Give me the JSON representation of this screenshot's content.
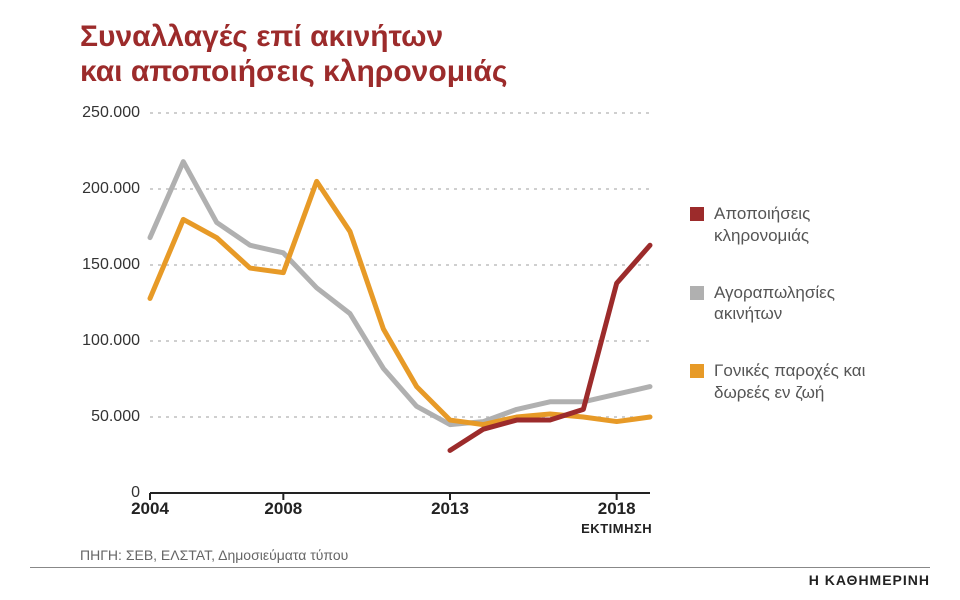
{
  "title_color": "#9c2b2b",
  "title_line1": "Συναλλαγές επί ακινήτων",
  "title_line2": "και αποποιήσεις κληρονομιάς",
  "chart": {
    "type": "line",
    "background_color": "#ffffff",
    "grid_color": "#bfbfbf",
    "axis_color": "#222222",
    "ylim_min": 0,
    "ylim_max": 250000,
    "ytick_labels": [
      "0",
      "50.000",
      "100.000",
      "150.000",
      "200.000",
      "250.000"
    ],
    "ytick_values": [
      0,
      50000,
      100000,
      150000,
      200000,
      250000
    ],
    "x_years": [
      2004,
      2005,
      2006,
      2007,
      2008,
      2009,
      2010,
      2011,
      2012,
      2013,
      2014,
      2015,
      2016,
      2017,
      2018,
      2019
    ],
    "x_tick_years": [
      2004,
      2008,
      2013,
      2018
    ],
    "x_tick_labels": [
      "2004",
      "2008",
      "2013",
      "2018"
    ],
    "x_estimate_year": 2018,
    "x_estimate_text": "ΕΚΤΙΜΗΣΗ",
    "line_width": 5,
    "series": [
      {
        "key": "apopoiiseis",
        "label": "Αποποιήσεις κληρονομιάς",
        "color": "#9c2b2b",
        "start_year": 2013,
        "values": [
          28000,
          42000,
          48000,
          48000,
          55000,
          138000,
          163000
        ]
      },
      {
        "key": "agorapolisies",
        "label": "Αγοραπωλησίες ακινήτων",
        "color": "#b0b0b0",
        "start_year": 2004,
        "values": [
          168000,
          218000,
          178000,
          163000,
          158000,
          135000,
          118000,
          82000,
          57000,
          45000,
          47000,
          55000,
          60000,
          60000,
          65000,
          70000
        ]
      },
      {
        "key": "gonikes",
        "label": "Γονικές παροχές και δωρεές εν ζωή",
        "color": "#e79a27",
        "start_year": 2004,
        "values": [
          128000,
          180000,
          168000,
          148000,
          145000,
          205000,
          172000,
          108000,
          70000,
          48000,
          45000,
          50000,
          52000,
          50000,
          47000,
          50000
        ]
      }
    ]
  },
  "legend_text_color": "#555555",
  "source_label": "ΠΗΓΗ: ΣΕΒ, ΕΛΣΤΑΤ, Δημοσιεύματα τύπου",
  "credit": "Η ΚΑΘΗΜΕΡΙΝΗ"
}
